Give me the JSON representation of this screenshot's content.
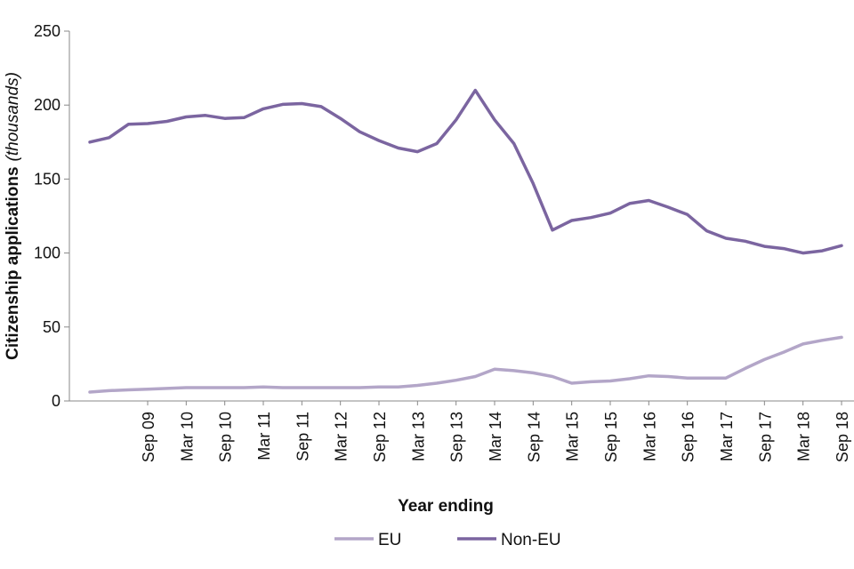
{
  "chart_data": {
    "type": "line",
    "title": "",
    "xlabel": "Year ending",
    "ylabel": "Citizenship applications",
    "ylabel_suffix": "(thousands)",
    "ylim": [
      0,
      250
    ],
    "yticks": [
      0,
      50,
      100,
      150,
      200,
      250
    ],
    "grid": false,
    "legend_position": "bottom-center",
    "x": [
      "Dec 08",
      "Mar 09",
      "Jun 09",
      "Sep 09",
      "Dec 09",
      "Mar 10",
      "Jun 10",
      "Sep 10",
      "Dec 10",
      "Mar 11",
      "Jun 11",
      "Sep 11",
      "Dec 11",
      "Mar 12",
      "Jun 12",
      "Sep 12",
      "Dec 12",
      "Mar 13",
      "Jun 13",
      "Sep 13",
      "Dec 13",
      "Mar 14",
      "Jun 14",
      "Sep 14",
      "Dec 14",
      "Mar 15",
      "Jun 15",
      "Sep 15",
      "Dec 15",
      "Mar 16",
      "Jun 16",
      "Sep 16",
      "Dec 16",
      "Mar 17",
      "Jun 17",
      "Sep 17",
      "Dec 17",
      "Mar 18",
      "Jun 18",
      "Sep 18"
    ],
    "tick_labels": [
      "Sep 09",
      "Mar 10",
      "Sep 10",
      "Mar 11",
      "Sep 11",
      "Mar 12",
      "Sep 12",
      "Mar 13",
      "Sep 13",
      "Mar 14",
      "Sep 14",
      "Mar 15",
      "Sep 15",
      "Mar 16",
      "Sep 16",
      "Mar 17",
      "Sep 17",
      "Mar 18",
      "Sep 18"
    ],
    "series": [
      {
        "name": "EU",
        "color": "#b3a6c8",
        "values": [
          6,
          7,
          7.5,
          8,
          8.5,
          9,
          9,
          9,
          9,
          9.5,
          9,
          9,
          9,
          9,
          9,
          9.5,
          9.5,
          10.5,
          12,
          14,
          16.5,
          21.5,
          20.5,
          19,
          16.5,
          12,
          13,
          13.5,
          15,
          17,
          16.5,
          15.5,
          15.5,
          15.5,
          22,
          28,
          33,
          38.5,
          41,
          43
        ]
      },
      {
        "name": "Non-EU",
        "color": "#7b65a0",
        "values": [
          175,
          178,
          187,
          187.5,
          189,
          192,
          193,
          191,
          191.5,
          197.5,
          200.5,
          201,
          199,
          191,
          182,
          176,
          171,
          168.5,
          174,
          190,
          210,
          190,
          174,
          147,
          115.5,
          122,
          124,
          127,
          133.5,
          135.5,
          131,
          126,
          115,
          110,
          108,
          104.5,
          103,
          100,
          101.5,
          105
        ]
      }
    ]
  }
}
